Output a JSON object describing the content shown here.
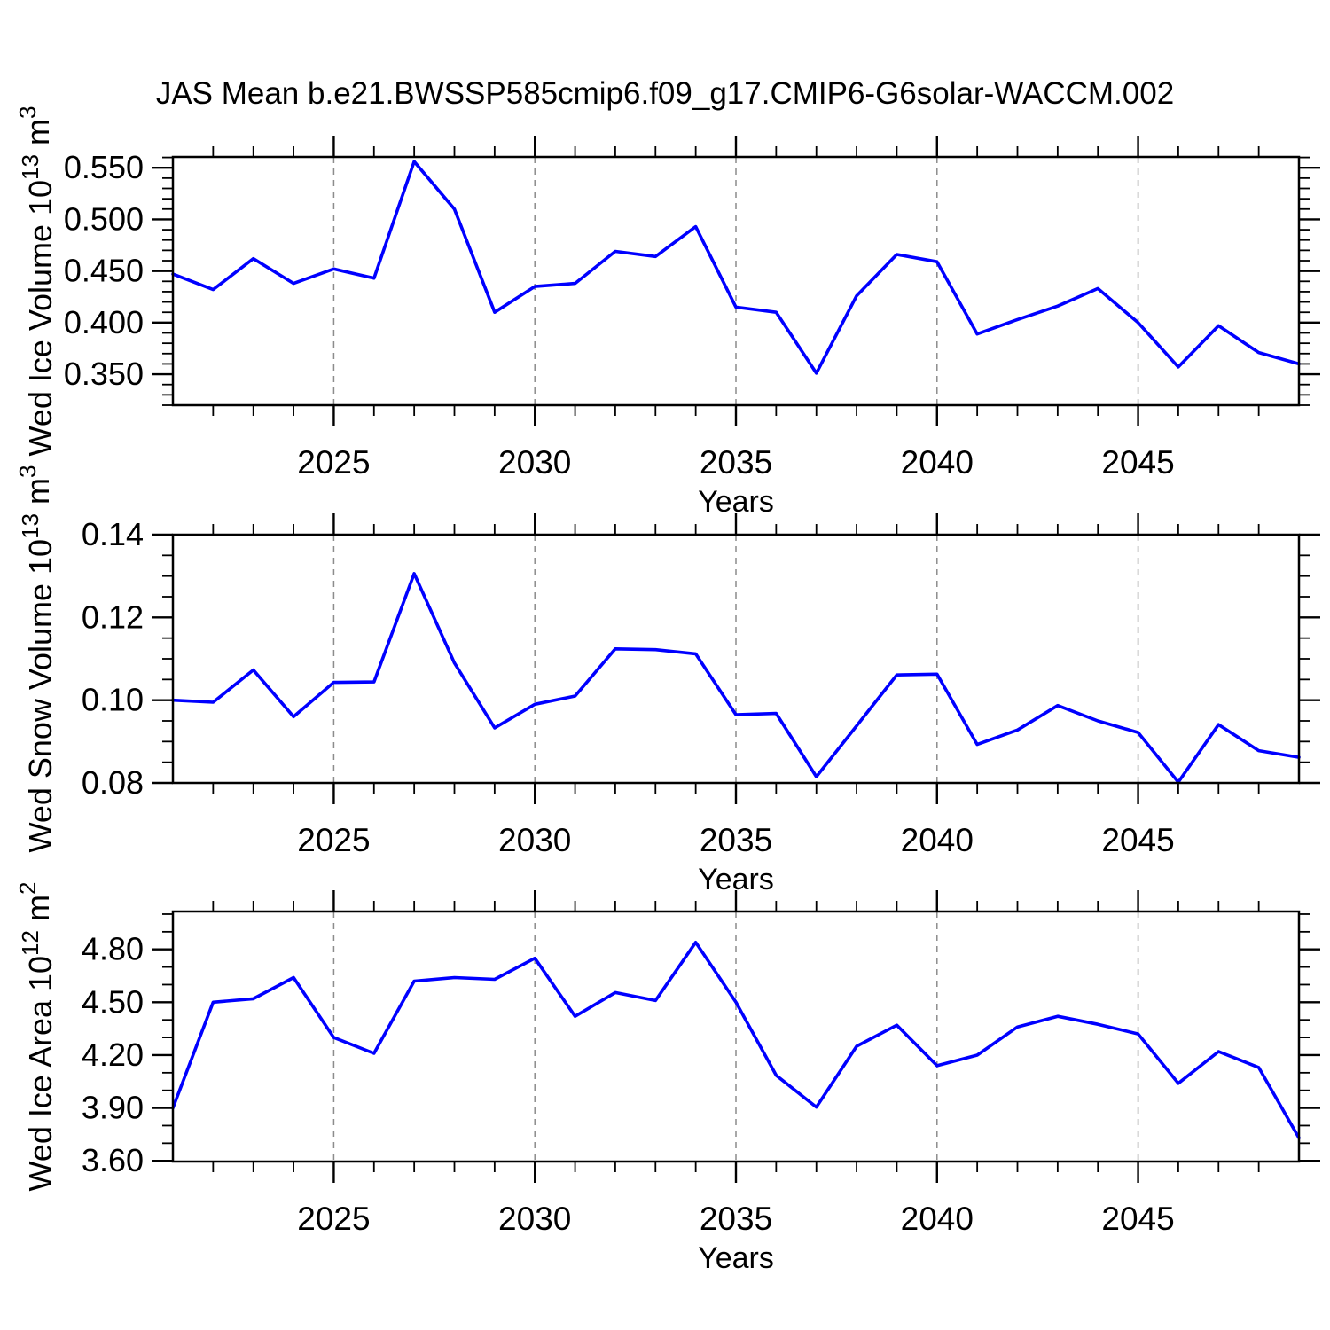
{
  "title": "JAS Mean b.e21.BWSSP585cmip6.f09_g17.CMIP6-G6solar-WACCM.002",
  "colors": {
    "line": "#0000ff",
    "grid": "#8c8c8c",
    "axis": "#000000",
    "text": "#000000"
  },
  "x_axis": {
    "label": "Years",
    "min": 2021,
    "max": 2049,
    "major_ticks": [
      2025,
      2030,
      2035,
      2040,
      2045
    ],
    "minor_step": 1
  },
  "chart_data": [
    {
      "type": "line",
      "title": "JAS Mean b.e21.BWSSP585cmip6.f09_g17.CMIP6-G6solar-WACCM.002",
      "xlabel": "Years",
      "ylabel": "Wed Ice Volume 10^13 m^3",
      "ylabel_parts": {
        "base": "Wed Ice Volume 10",
        "exp": "13",
        "unit": " m",
        "unit_exp": "3"
      },
      "ylim": [
        0.32,
        0.5605
      ],
      "ytick_values": [
        0.35,
        0.4,
        0.45,
        0.5,
        0.55
      ],
      "ytick_decimals": 3,
      "yminor_step": 0.01,
      "x": [
        2021,
        2022,
        2023,
        2024,
        2025,
        2026,
        2027,
        2028,
        2029,
        2030,
        2031,
        2032,
        2033,
        2034,
        2035,
        2036,
        2037,
        2038,
        2039,
        2040,
        2041,
        2042,
        2043,
        2044,
        2045,
        2046,
        2047,
        2048,
        2049
      ],
      "y": [
        0.447,
        0.432,
        0.462,
        0.438,
        0.452,
        0.443,
        0.556,
        0.51,
        0.41,
        0.435,
        0.438,
        0.469,
        0.464,
        0.493,
        0.415,
        0.41,
        0.351,
        0.426,
        0.466,
        0.459,
        0.389,
        0.403,
        0.416,
        0.433,
        0.4,
        0.357,
        0.397,
        0.371,
        0.36
      ]
    },
    {
      "type": "line",
      "title": "",
      "xlabel": "Years",
      "ylabel": "Wed Snow Volume 10^13 m^3",
      "ylabel_parts": {
        "base": "Wed Snow Volume 10",
        "exp": "13",
        "unit": " m",
        "unit_exp": "3"
      },
      "ylim": [
        0.08,
        0.14
      ],
      "ytick_values": [
        0.08,
        0.1,
        0.12,
        0.14
      ],
      "ytick_decimals": 2,
      "yminor_step": 0.005,
      "x": [
        2021,
        2022,
        2023,
        2024,
        2025,
        2026,
        2027,
        2028,
        2029,
        2030,
        2031,
        2032,
        2033,
        2034,
        2035,
        2036,
        2037,
        2038,
        2039,
        2040,
        2041,
        2042,
        2043,
        2044,
        2045,
        2046,
        2047,
        2048,
        2049
      ],
      "y": [
        0.1,
        0.0995,
        0.1073,
        0.096,
        0.1043,
        0.1044,
        0.1306,
        0.109,
        0.0933,
        0.099,
        0.101,
        0.1124,
        0.1122,
        0.1112,
        0.0965,
        0.0968,
        0.0815,
        0.0938,
        0.1061,
        0.1063,
        0.0893,
        0.0928,
        0.0987,
        0.095,
        0.0922,
        0.0802,
        0.0941,
        0.0878,
        0.0862
      ]
    },
    {
      "type": "line",
      "title": "",
      "xlabel": "Years",
      "ylabel": "Wed Ice Area 10^12 m^2",
      "ylabel_parts": {
        "base": "Wed Ice Area 10",
        "exp": "12",
        "unit": " m",
        "unit_exp": "2"
      },
      "ylim": [
        3.596,
        5.015
      ],
      "ytick_values": [
        3.6,
        3.9,
        4.2,
        4.5,
        4.8
      ],
      "ytick_decimals": 2,
      "yminor_step": 0.1,
      "x": [
        2021,
        2022,
        2023,
        2024,
        2025,
        2026,
        2027,
        2028,
        2029,
        2030,
        2031,
        2032,
        2033,
        2034,
        2035,
        2036,
        2037,
        2038,
        2039,
        2040,
        2041,
        2042,
        2043,
        2044,
        2045,
        2046,
        2047,
        2048,
        2049
      ],
      "y": [
        3.9,
        4.5,
        4.52,
        4.64,
        4.3,
        4.21,
        4.62,
        4.64,
        4.63,
        4.75,
        4.42,
        4.555,
        4.51,
        4.84,
        4.5,
        4.085,
        3.905,
        4.25,
        4.37,
        4.14,
        4.2,
        4.36,
        4.42,
        4.375,
        4.32,
        4.04,
        4.22,
        4.13,
        3.73
      ]
    }
  ]
}
